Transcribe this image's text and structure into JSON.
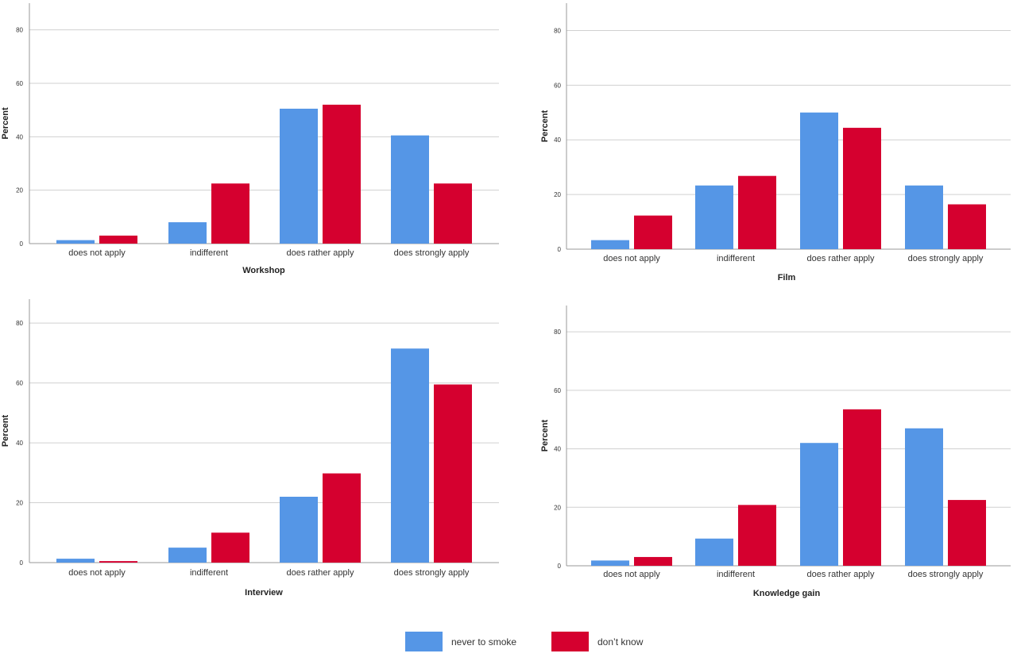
{
  "colors": {
    "series1": "#5596e6",
    "series2": "#d5002f",
    "grid": "#d0d0d0",
    "axis": "#999999",
    "text": "#333333"
  },
  "legend": {
    "placement": "bottom-center",
    "items": [
      {
        "label": "never to smoke",
        "color": "#5596e6"
      },
      {
        "label": "don’t know",
        "color": "#d5002f"
      }
    ]
  },
  "chart_data": [
    {
      "type": "bar",
      "xlabel": "Workshop",
      "ylabel": "Percent",
      "ylim": [
        0,
        90
      ],
      "yticks": [
        0,
        20,
        40,
        60,
        80
      ],
      "grid": true,
      "categories": [
        "does not apply",
        "indifferent",
        "does rather apply",
        "does strongly apply"
      ],
      "series": [
        {
          "name": "never to smoke",
          "values": [
            1.3,
            8,
            50.5,
            40.5
          ]
        },
        {
          "name": "don’t know",
          "values": [
            3,
            22.5,
            52,
            22.5
          ]
        }
      ]
    },
    {
      "type": "bar",
      "xlabel": "Film",
      "ylabel": "Percent",
      "ylim": [
        0,
        90
      ],
      "yticks": [
        0,
        20,
        40,
        60,
        80
      ],
      "grid": true,
      "categories": [
        "does not apply",
        "indifferent",
        "does rather apply",
        "does strongly apply"
      ],
      "series": [
        {
          "name": "never to smoke",
          "values": [
            3.3,
            23.3,
            50,
            23.3
          ]
        },
        {
          "name": "don’t know",
          "values": [
            12.3,
            26.8,
            44.4,
            16.4
          ]
        }
      ]
    },
    {
      "type": "bar",
      "xlabel": "Interview",
      "ylabel": "Percent",
      "ylim": [
        0,
        88
      ],
      "yticks": [
        0,
        20,
        40,
        60,
        80
      ],
      "grid": true,
      "categories": [
        "does not apply",
        "indifferent",
        "does rather apply",
        "does strongly apply"
      ],
      "series": [
        {
          "name": "never to smoke",
          "values": [
            1.3,
            5,
            22,
            71.5
          ]
        },
        {
          "name": "don’t know",
          "values": [
            0.5,
            10,
            29.8,
            59.5
          ]
        }
      ]
    },
    {
      "type": "bar",
      "xlabel": "Knowledge gain",
      "ylabel": "Percent",
      "ylim": [
        0,
        89
      ],
      "yticks": [
        0,
        20,
        40,
        60,
        80
      ],
      "grid": true,
      "categories": [
        "does not apply",
        "indifferent",
        "does rather apply",
        "does strongly apply"
      ],
      "series": [
        {
          "name": "never to smoke",
          "values": [
            1.8,
            9.3,
            42,
            47
          ]
        },
        {
          "name": "don’t know",
          "values": [
            3,
            20.8,
            53.5,
            22.5
          ]
        }
      ]
    }
  ]
}
